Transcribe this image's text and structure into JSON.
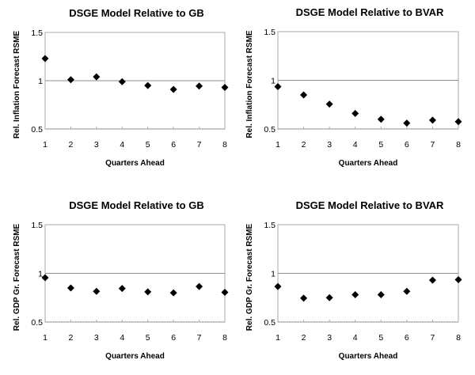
{
  "chart_data": [
    {
      "type": "scatter",
      "title": "DSGE Model Relative to GB",
      "xlabel": "Quarters Ahead",
      "ylabel": "Rel. Inflation Forecast RSME",
      "x": [
        1,
        2,
        3,
        4,
        5,
        6,
        7,
        8
      ],
      "values": [
        1.23,
        1.01,
        1.04,
        0.99,
        0.95,
        0.91,
        0.945,
        0.93
      ],
      "ylim": [
        0.5,
        1.5
      ],
      "yticks": [
        "0.5",
        "1",
        "1.5"
      ],
      "xticks": [
        "1",
        "2",
        "3",
        "4",
        "5",
        "6",
        "7",
        "8"
      ],
      "reference_line": 1,
      "marker": "diamond",
      "marker_color": "#000000"
    },
    {
      "type": "scatter",
      "title": "DSGE Model Relative to BVAR",
      "xlabel": "Quarters Ahead",
      "ylabel": "Rel. Inflation Forecast RSME",
      "x": [
        1,
        2,
        3,
        4,
        5,
        6,
        7,
        8
      ],
      "values": [
        0.935,
        0.85,
        0.755,
        0.66,
        0.6,
        0.56,
        0.59,
        0.575
      ],
      "ylim": [
        0.5,
        1.5
      ],
      "yticks": [
        "0.5",
        "1",
        "1.5"
      ],
      "xticks": [
        "1",
        "2",
        "3",
        "4",
        "5",
        "6",
        "7",
        "8"
      ],
      "reference_line": 1,
      "marker": "diamond",
      "marker_color": "#000000"
    },
    {
      "type": "scatter",
      "title": "DSGE Model Relative to GB",
      "xlabel": "Quarters Ahead",
      "ylabel": "Rel. GDP Gr. Forecast RSME",
      "x": [
        1,
        2,
        3,
        4,
        5,
        6,
        7,
        8
      ],
      "values": [
        0.955,
        0.85,
        0.815,
        0.845,
        0.81,
        0.8,
        0.865,
        0.805
      ],
      "ylim": [
        0.5,
        1.5
      ],
      "yticks": [
        "0.5",
        "1",
        "1.5"
      ],
      "xticks": [
        "1",
        "2",
        "3",
        "4",
        "5",
        "6",
        "7",
        "8"
      ],
      "reference_line": 1,
      "marker": "diamond",
      "marker_color": "#000000"
    },
    {
      "type": "scatter",
      "title": "DSGE Model Relative to BVAR",
      "xlabel": "Quarters Ahead",
      "ylabel": "Rel. GDP Gr. Forecast RSME",
      "x": [
        1,
        2,
        3,
        4,
        5,
        6,
        7,
        8
      ],
      "values": [
        0.865,
        0.745,
        0.75,
        0.78,
        0.78,
        0.815,
        0.93,
        0.935
      ],
      "ylim": [
        0.5,
        1.5
      ],
      "yticks": [
        "0.5",
        "1",
        "1.5"
      ],
      "xticks": [
        "1",
        "2",
        "3",
        "4",
        "5",
        "6",
        "7",
        "8"
      ],
      "reference_line": 1,
      "marker": "diamond",
      "marker_color": "#000000"
    }
  ]
}
